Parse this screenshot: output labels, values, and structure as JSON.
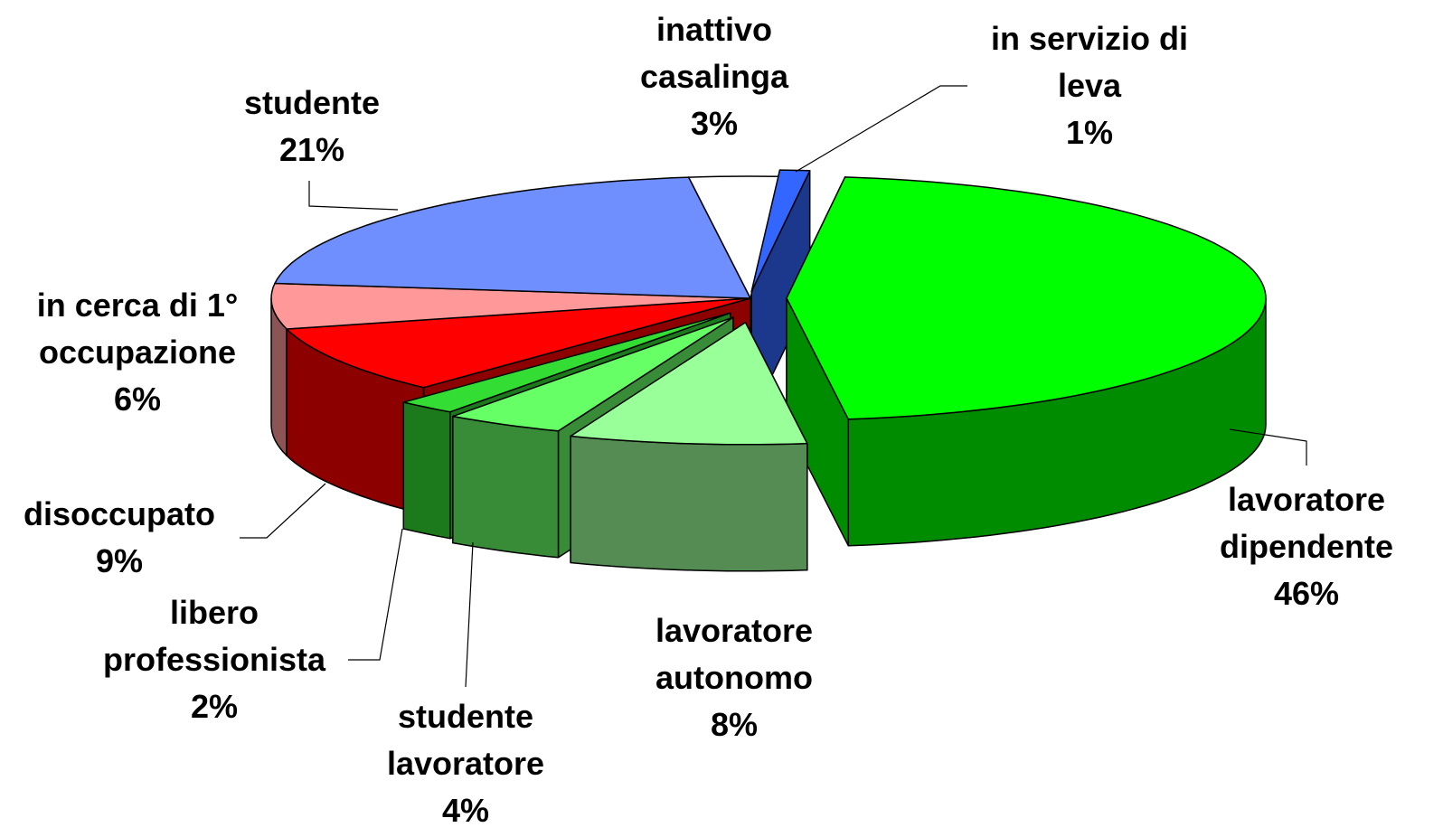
{
  "chart_data": {
    "type": "pie3d",
    "categories": [
      "lavoratore\ndipendente",
      "lavoratore\nautonomo",
      "studente\nlavoratore",
      "libero\nprofessionista",
      "disoccupato",
      "in cerca di 1°\noccupazione",
      "studente",
      "inattivo\ncasalinga",
      "in servizio di\nleva"
    ],
    "values": [
      46,
      8,
      4,
      2,
      9,
      6,
      21,
      3,
      1
    ],
    "value_labels": [
      "46%",
      "8%",
      "4%",
      "2%",
      "9%",
      "6%",
      "21%",
      "3%",
      "1%"
    ],
    "colors": [
      "#00ff00",
      "#99ff99",
      "#66ff66",
      "#33dd33",
      "#ff0000",
      "#ff9999",
      "#6f8fff",
      "#ffffff",
      "#3366ff"
    ]
  }
}
